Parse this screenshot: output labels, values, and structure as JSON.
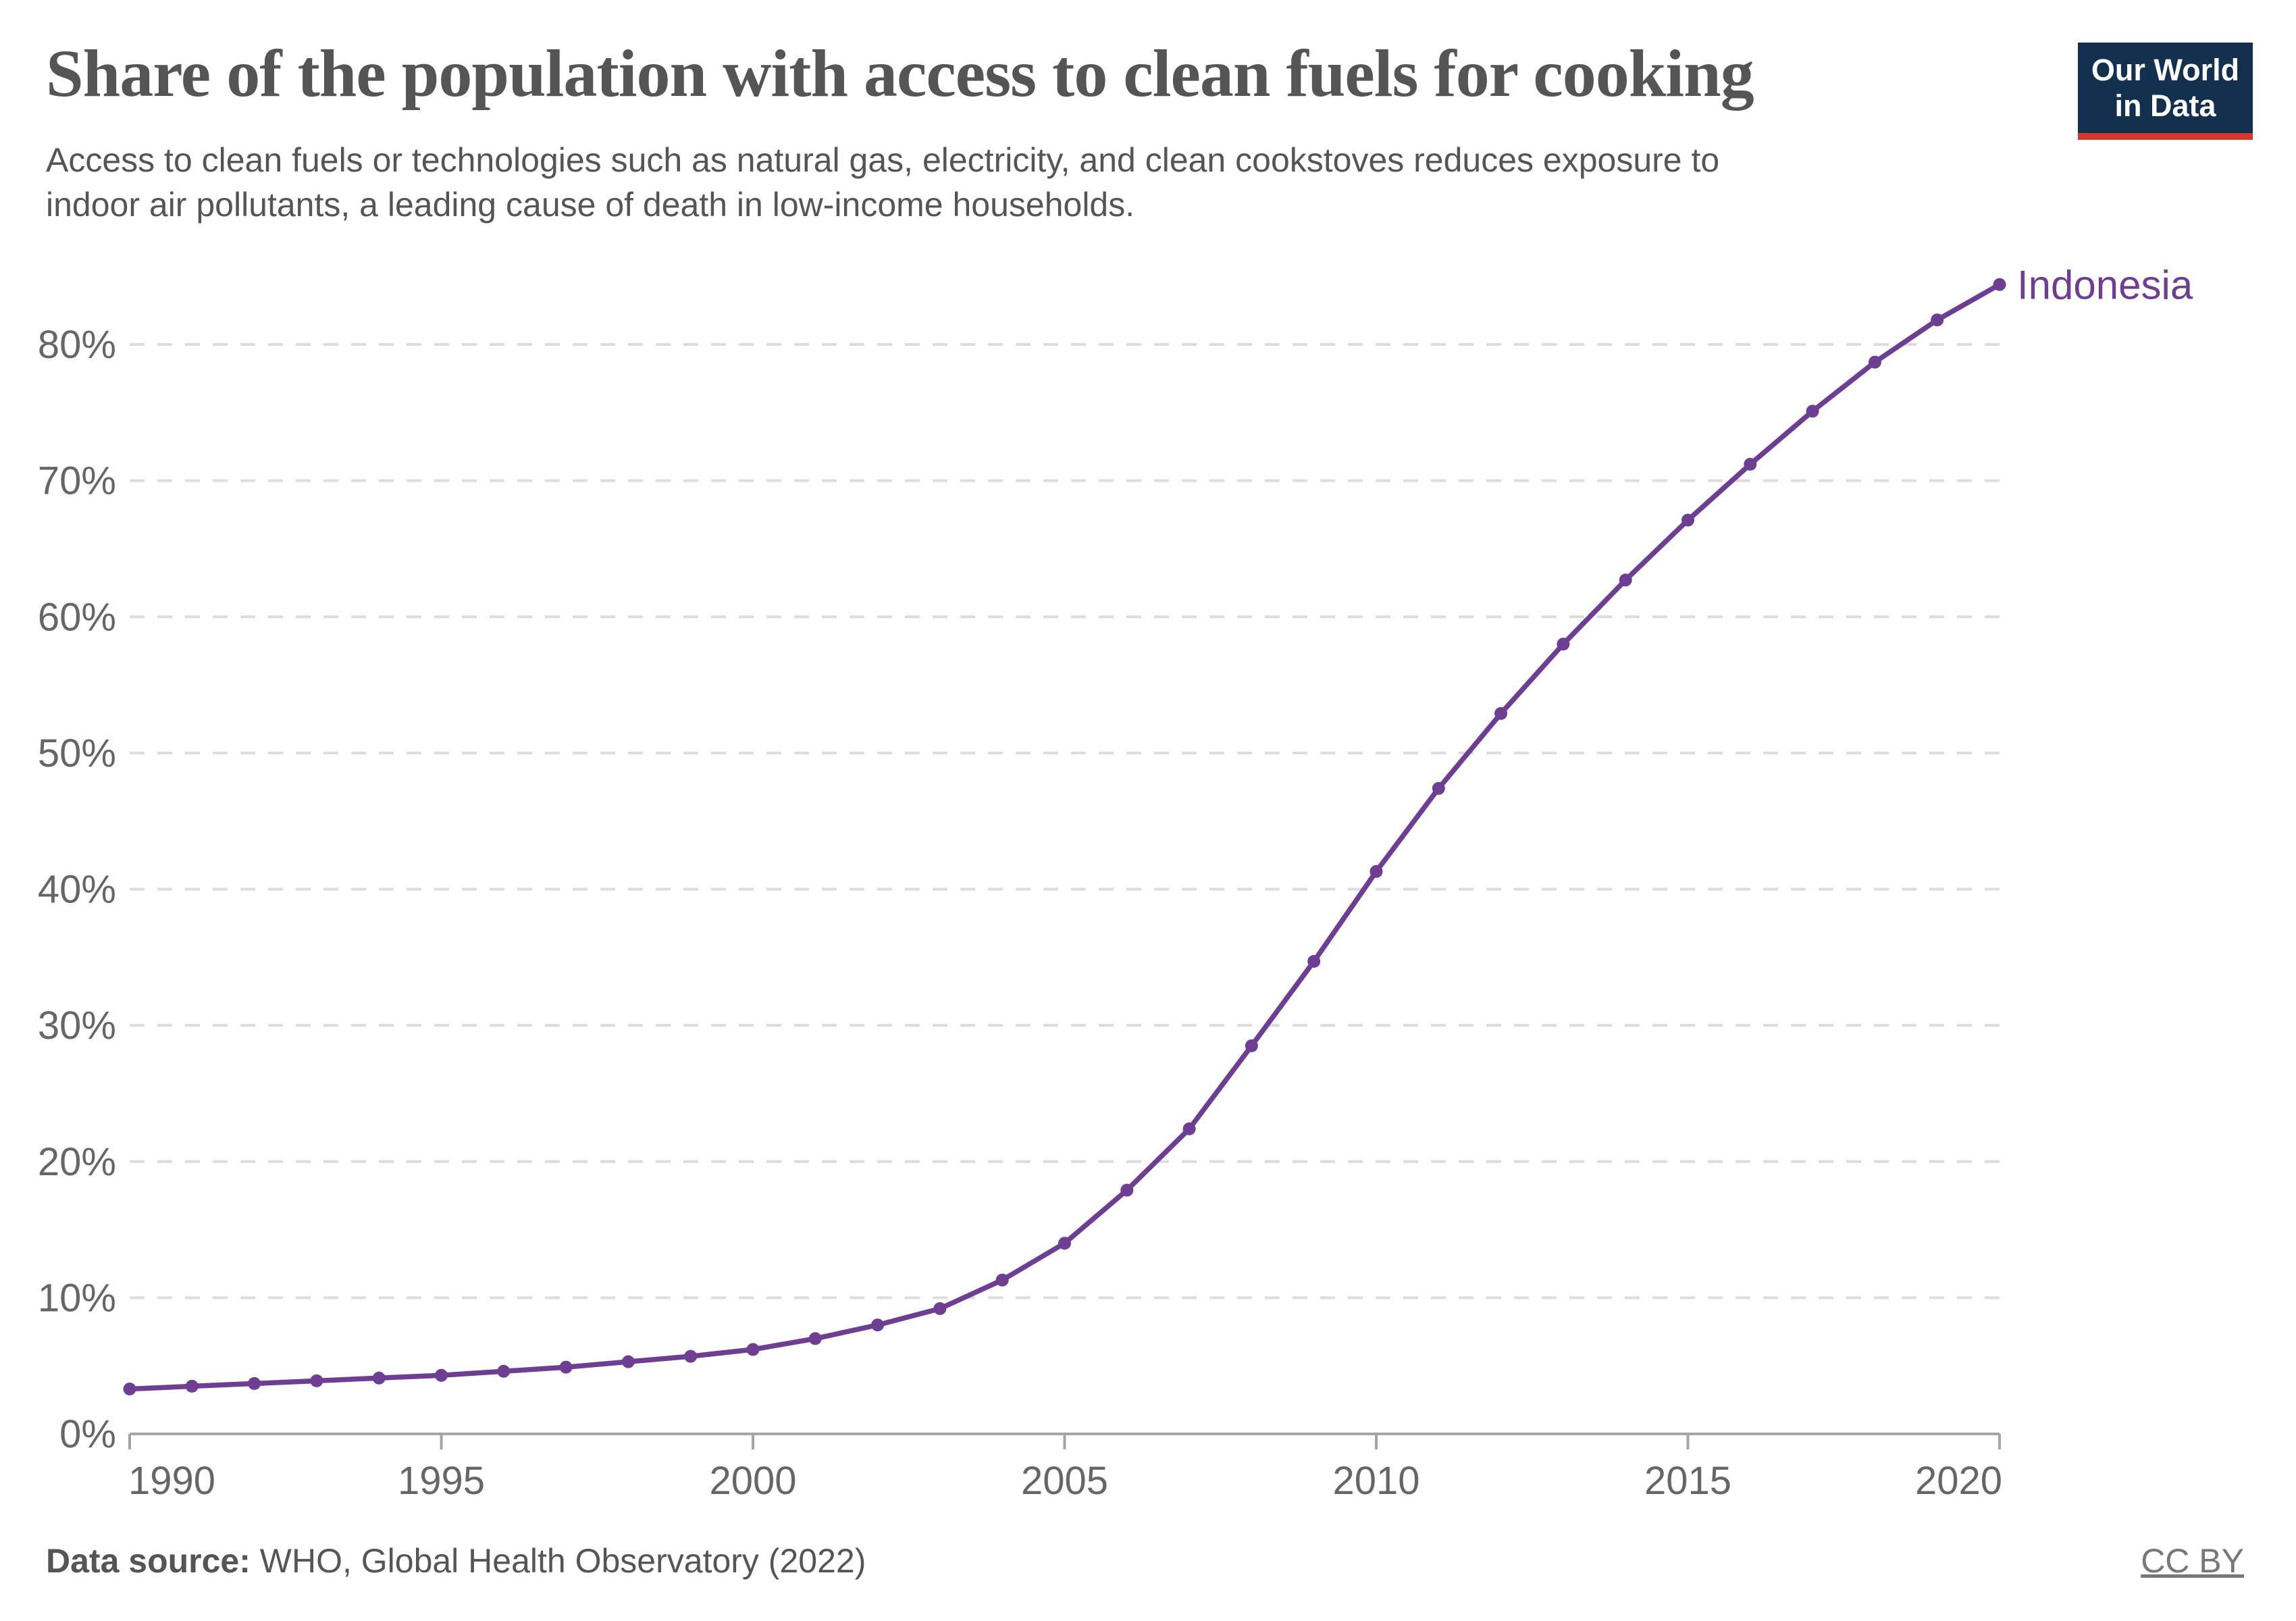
{
  "header": {
    "title": "Share of the population with access to clean fuels for cooking",
    "subtitle_lines": [
      "Access to clean fuels or technologies such as natural gas, electricity, and clean cookstoves reduces exposure to",
      "indoor air pollutants, a leading cause of death in low-income households."
    ],
    "logo": {
      "line1": "Our World",
      "line2": "in Data",
      "bg_color": "#14304f",
      "stripe_color": "#d7362a"
    }
  },
  "chart_data": {
    "type": "line",
    "title": "Share of the population with access to clean fuels for cooking",
    "x": [
      1990,
      1991,
      1992,
      1993,
      1994,
      1995,
      1996,
      1997,
      1998,
      1999,
      2000,
      2001,
      2002,
      2003,
      2004,
      2005,
      2006,
      2007,
      2008,
      2009,
      2010,
      2011,
      2012,
      2013,
      2014,
      2015,
      2016,
      2017,
      2018,
      2019,
      2020
    ],
    "series": [
      {
        "name": "Indonesia",
        "color": "#6d3e91",
        "values": [
          3.3,
          3.5,
          3.7,
          3.9,
          4.1,
          4.3,
          4.6,
          4.9,
          5.3,
          5.7,
          6.2,
          7.0,
          8.0,
          9.2,
          11.3,
          14.0,
          17.9,
          22.4,
          28.5,
          34.7,
          41.3,
          47.4,
          52.9,
          58.0,
          62.7,
          67.1,
          71.2,
          75.1,
          78.7,
          81.8,
          84.4
        ]
      }
    ],
    "xlabel": "",
    "ylabel": "",
    "ylim": [
      0,
      85
    ],
    "yticks": [
      0,
      10,
      20,
      30,
      40,
      50,
      60,
      70,
      80
    ],
    "ytick_suffix": "%",
    "xticks": [
      1990,
      1995,
      2000,
      2005,
      2010,
      2015,
      2020
    ],
    "grid": "horizontal-dashed",
    "legend_position": "end-of-line-label",
    "marker": "circle"
  },
  "colors": {
    "accent_purple": "#6d3e91",
    "grid": "#dcdcdc",
    "axis": "#a5a5a5",
    "tick_text": "#666666",
    "text": "#555555"
  },
  "footer": {
    "source_label": "Data source:",
    "source_text": " WHO, Global Health Observatory (2022)",
    "license": "CC BY"
  }
}
